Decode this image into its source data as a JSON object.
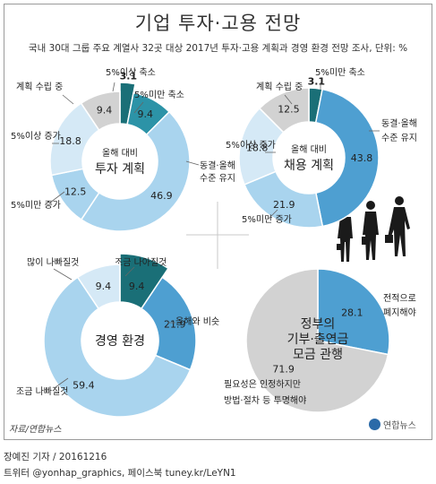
{
  "header": {
    "title": "기업 투자·고용 전망",
    "subtitle": "국내 30대 그룹 주요 계열사 32곳 대상 2017년 투자·고용 계획과 경영 환경 전망 조사, 단위: %"
  },
  "footer": {
    "source": "자료/연합뉴스",
    "logo_text": "연합뉴스",
    "credit_line1": "장예진 기자 / 20161216",
    "credit_line2": "트위터 @yonhap_graphics, 페이스북 tuney.kr/LeYN1"
  },
  "colors": {
    "dark_teal": "#1f7d86",
    "mid_blue": "#4e9fd1",
    "light_blue": "#a9d4ee",
    "pale_blue": "#d5e9f6",
    "gray": "#d2d2d2"
  },
  "chart_data": [
    {
      "type": "pie",
      "id": "investment",
      "center_line1": "올해 대비",
      "center_line2": "투자 계획",
      "slices": [
        {
          "label": "5%이상 축소",
          "value": 3.1,
          "display": "3.1",
          "color": "#1a6f77"
        },
        {
          "label": "5%미만 축소",
          "value": 9.4,
          "display": "9.4",
          "color": "#2c93a7"
        },
        {
          "label": "동결·올해 수준 유지",
          "value": 46.9,
          "display": "46.9",
          "color": "#a9d4ee"
        },
        {
          "label": "5%미만 증가",
          "value": 12.5,
          "display": "12.5",
          "color": "#a9d4ee"
        },
        {
          "label": "5%이상 증가",
          "value": 18.8,
          "display": "18.8",
          "color": "#d5e9f6"
        },
        {
          "label": "계획 수립 중",
          "value": 9.4,
          "display": "9.4",
          "color": "#d2d2d2"
        }
      ]
    },
    {
      "type": "pie",
      "id": "hiring",
      "center_line1": "올해 대비",
      "center_line2": "채용 계획",
      "slices": [
        {
          "label": "5%미만 축소",
          "value": 3.1,
          "display": "3.1",
          "color": "#1a6f77"
        },
        {
          "label": "동결·올해 수준 유지",
          "value": 43.8,
          "display": "43.8",
          "color": "#4e9fd1"
        },
        {
          "label": "5%미만 증가",
          "value": 21.9,
          "display": "21.9",
          "color": "#a9d4ee"
        },
        {
          "label": "5%이상 증가",
          "value": 18.8,
          "display": "18.8",
          "color": "#d5e9f6"
        },
        {
          "label": "계획 수립 중",
          "value": 12.5,
          "display": "12.5",
          "color": "#d2d2d2"
        }
      ]
    },
    {
      "type": "pie",
      "id": "environment",
      "center_line1": "경영 환경",
      "center_line2": "",
      "slices": [
        {
          "label": "조금 나아질것",
          "value": 9.4,
          "display": "9.4",
          "color": "#1a6f77"
        },
        {
          "label": "올해와 비슷",
          "value": 21.9,
          "display": "21.9",
          "color": "#4e9fd1"
        },
        {
          "label": "조금 나빠질것",
          "value": 59.4,
          "display": "59.4",
          "color": "#a9d4ee"
        },
        {
          "label": "많이 나빠질것",
          "value": 9.4,
          "display": "9.4",
          "color": "#d5e9f6"
        }
      ]
    },
    {
      "type": "pie",
      "id": "fund",
      "center_line1": "정부의",
      "center_line2": "기부·출연금",
      "center_line3": "모금 관행",
      "slices": [
        {
          "label": "전적으로 폐지해야",
          "value": 28.1,
          "display": "28.1",
          "color": "#4e9fd1"
        },
        {
          "label": "필요성은 인정하지만 방법·절차 등 투명해야",
          "value": 71.9,
          "display": "71.9",
          "color": "#d2d2d2"
        }
      ]
    }
  ]
}
